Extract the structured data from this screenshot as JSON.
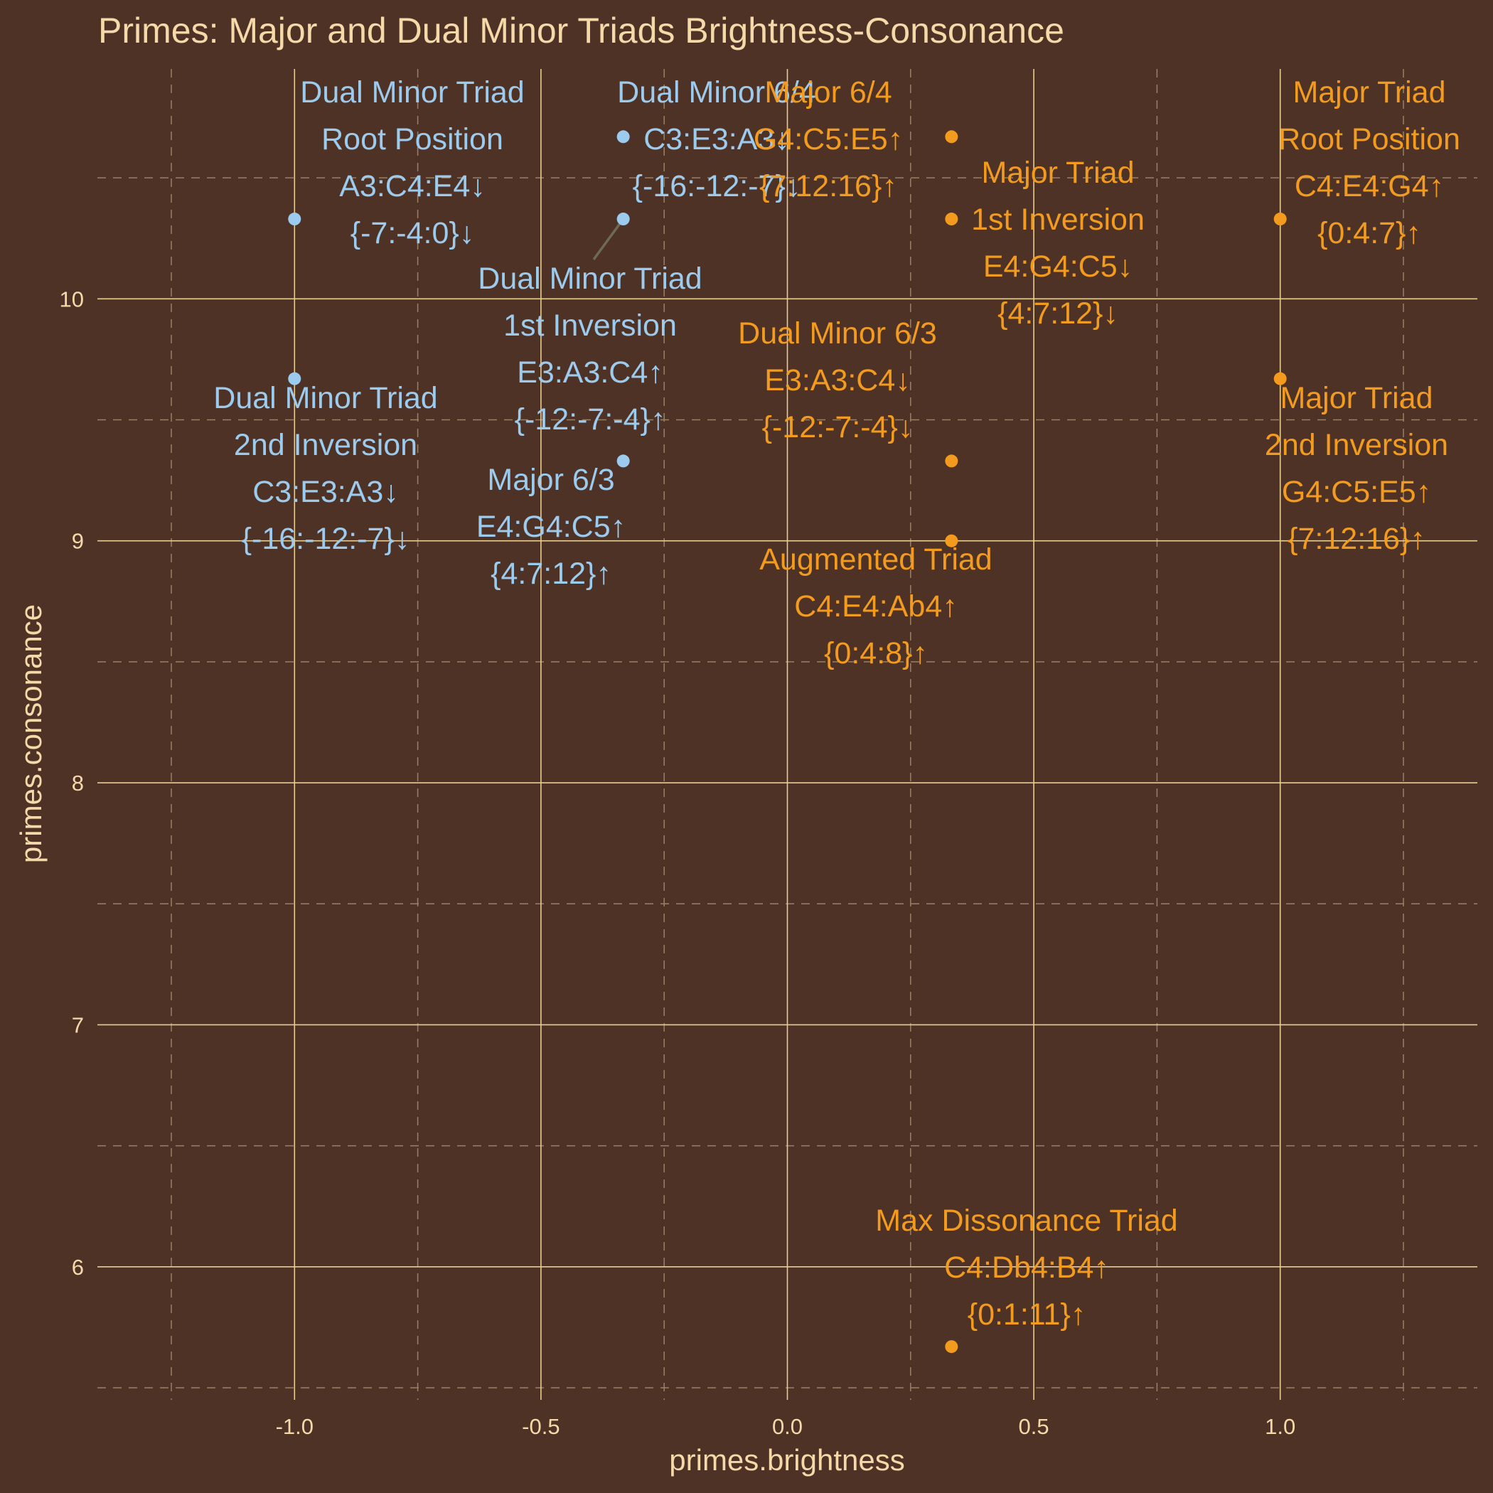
{
  "chart_data": {
    "type": "scatter",
    "title": "Primes: Major and Dual Minor Triads Brightness-Consonance",
    "xlabel": "primes.brightness",
    "ylabel": "primes.consonance",
    "xlim": [
      -1.4,
      1.4
    ],
    "ylim": [
      5.45,
      10.95
    ],
    "x_ticks": [
      -1.0,
      -0.5,
      0.0,
      0.5,
      1.0
    ],
    "x_tick_labels": [
      "-1.0",
      "-0.5",
      "0.0",
      "0.5",
      "1.0"
    ],
    "y_ticks": [
      6,
      7,
      8,
      9,
      10
    ],
    "y_tick_labels": [
      "6",
      "7",
      "8",
      "9",
      "10"
    ],
    "grid": true,
    "legend": "none",
    "colors": {
      "background": "#4e3226",
      "major": "#f29b1e",
      "dual_minor": "#9ccbee",
      "text": "#f5d9a8",
      "grid": "#e8cd92"
    },
    "series": [
      {
        "color": "#9ccbee",
        "points": [
          {
            "x": -1.0,
            "y": 10.33,
            "label": [
              "Dual Minor Triad",
              "Root Position",
              "A3:C4:E4↓",
              "{-7:-4:0}↓"
            ]
          },
          {
            "x": -1.0,
            "y": 9.67,
            "label": [
              "Dual Minor Triad",
              "2nd Inversion",
              "C3:E3:A3↓",
              "{-16:-12:-7}↓"
            ]
          },
          {
            "x": -0.333,
            "y": 10.67,
            "label": [
              "Dual Minor 6/4",
              "C3:E3:A3↓",
              "{-16:-12:-7}↓"
            ]
          },
          {
            "x": -0.333,
            "y": 10.33,
            "label": [
              "Dual Minor Triad",
              "1st Inversion",
              "E3:A3:C4↑",
              "{-12:-7:-4}↑"
            ]
          },
          {
            "x": -0.333,
            "y": 9.33,
            "label": [
              "Major 6/3",
              "E4:G4:C5↑",
              "{4:7:12}↑"
            ]
          }
        ]
      },
      {
        "color": "#f29b1e",
        "points": [
          {
            "x": 0.333,
            "y": 10.67,
            "label": [
              "Major 6/4",
              "G4:C5:E5↑",
              "{7:12:16}↑"
            ]
          },
          {
            "x": 0.333,
            "y": 10.33,
            "label": [
              "Major Triad",
              "1st Inversion",
              "E4:G4:C5↓",
              "{4:7:12}↓"
            ]
          },
          {
            "x": 0.333,
            "y": 9.33,
            "label": [
              "Dual Minor 6/3",
              "E3:A3:C4↓",
              "{-12:-7:-4}↓"
            ]
          },
          {
            "x": 0.333,
            "y": 9.0,
            "label": [
              "Augmented Triad",
              "C4:E4:Ab4↑",
              "{0:4:8}↑"
            ]
          },
          {
            "x": 0.333,
            "y": 5.67,
            "label": [
              "Max Dissonance Triad",
              "C4:Db4:B4↑",
              "{0:1:11}↑"
            ]
          },
          {
            "x": 1.0,
            "y": 10.33,
            "label": [
              "Major Triad",
              "Root Position",
              "C4:E4:G4↑",
              "{0:4:7}↑"
            ]
          },
          {
            "x": 1.0,
            "y": 9.67,
            "label": [
              "Major Triad",
              "2nd Inversion",
              "G4:C5:E5↑",
              "{7:12:16}↑"
            ]
          }
        ]
      }
    ]
  }
}
